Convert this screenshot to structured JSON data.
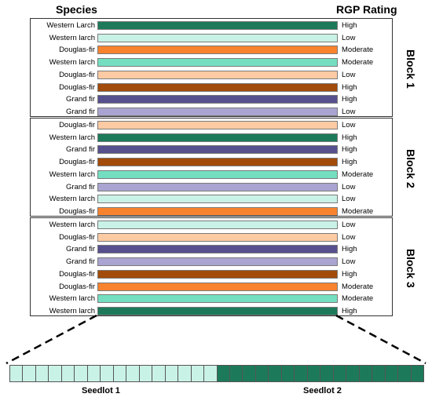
{
  "header": {
    "species": "Species",
    "rating": "RGP Rating"
  },
  "colors": {
    "western_larch_high": "#1c7a5a",
    "western_larch_low": "#c9f2e6",
    "western_larch_moderate": "#74dfc0",
    "douglas_fir_moderate": "#f8832e",
    "douglas_fir_low": "#fccaa3",
    "douglas_fir_high": "#a24b0a",
    "grand_fir_high": "#57508f",
    "grand_fir_low": "#a9a4d1"
  },
  "blocks": [
    {
      "label": "Block 1",
      "rows": [
        {
          "species": "Western Larch",
          "rating": "High",
          "color": "#1c7a5a"
        },
        {
          "species": "Western larch",
          "rating": "Low",
          "color": "#c9f2e6"
        },
        {
          "species": "Douglas-fir",
          "rating": "Moderate",
          "color": "#f8832e"
        },
        {
          "species": "Western larch",
          "rating": "Moderate",
          "color": "#74dfc0"
        },
        {
          "species": "Douglas-fir",
          "rating": "Low",
          "color": "#fccaa3"
        },
        {
          "species": "Douglas-fir",
          "rating": "High",
          "color": "#a24b0a"
        },
        {
          "species": "Grand fir",
          "rating": "High",
          "color": "#57508f"
        },
        {
          "species": "Grand fir",
          "rating": "Low",
          "color": "#a9a4d1"
        }
      ]
    },
    {
      "label": "Block 2",
      "rows": [
        {
          "species": "Douglas-fir",
          "rating": "Low",
          "color": "#fccaa3"
        },
        {
          "species": "Western larch",
          "rating": "High",
          "color": "#1c7a5a"
        },
        {
          "species": "Grand fir",
          "rating": "High",
          "color": "#57508f"
        },
        {
          "species": "Douglas-fir",
          "rating": "High",
          "color": "#a24b0a"
        },
        {
          "species": "Western larch",
          "rating": "Moderate",
          "color": "#74dfc0"
        },
        {
          "species": "Grand fir",
          "rating": "Low",
          "color": "#a9a4d1"
        },
        {
          "species": "Western larch",
          "rating": "Low",
          "color": "#c9f2e6"
        },
        {
          "species": "Douglas-fir",
          "rating": "Moderate",
          "color": "#f8832e"
        }
      ]
    },
    {
      "label": "Block 3",
      "rows": [
        {
          "species": "Western larch",
          "rating": "Low",
          "color": "#c9f2e6"
        },
        {
          "species": "Douglas-fir",
          "rating": "Low",
          "color": "#fccaa3"
        },
        {
          "species": "Grand fir",
          "rating": "High",
          "color": "#57508f"
        },
        {
          "species": "Grand fir",
          "rating": "Low",
          "color": "#a9a4d1"
        },
        {
          "species": "Douglas-fir",
          "rating": "High",
          "color": "#a24b0a"
        },
        {
          "species": "Douglas-fir",
          "rating": "Moderate",
          "color": "#f8832e"
        },
        {
          "species": "Western larch",
          "rating": "Moderate",
          "color": "#74dfc0"
        },
        {
          "species": "Western larch",
          "rating": "High",
          "color": "#1c7a5a"
        }
      ]
    }
  ],
  "seedlots": [
    {
      "label": "Seedlot 1",
      "cells": 16,
      "color": "#c9f2e6"
    },
    {
      "label": "Seedlot 2",
      "cells": 16,
      "color": "#1c7a5a"
    }
  ]
}
